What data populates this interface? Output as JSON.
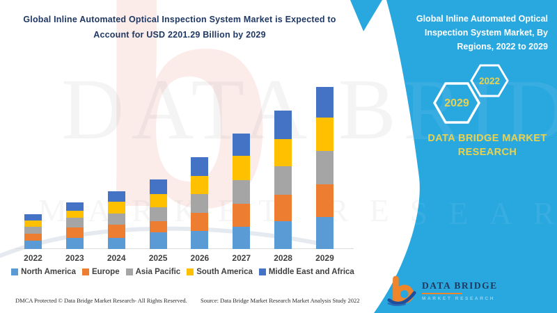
{
  "left": {
    "title_lines": [
      "Global Inline Automated Optical Inspection System Market is Expected to",
      "Account for USD 2201.29 Billion by 2029"
    ],
    "title_color": "#1f3864"
  },
  "right_panel": {
    "bg_color": "#29a7df",
    "title_lines": [
      "Global Inline Automated Optical",
      "Inspection System Market, By",
      "Regions, 2022 to 2029"
    ],
    "hexagons": [
      {
        "year": "2029"
      },
      {
        "year": "2022"
      }
    ],
    "brand_text_lines": [
      "DATA BRIDGE MARKET",
      "RESEARCH"
    ],
    "accent_text_color": "#ebd24d"
  },
  "chart_data": {
    "type": "bar",
    "stacked": true,
    "unit": "USD Billion",
    "categories": [
      "2022",
      "2023",
      "2024",
      "2025",
      "2026",
      "2027",
      "2028",
      "2029"
    ],
    "series": [
      {
        "name": "North America",
        "color": "#5b9bd5",
        "values": [
          113,
          156,
          156,
          231,
          246,
          307,
          383,
          435
        ]
      },
      {
        "name": "Europe",
        "color": "#ed7d31",
        "values": [
          99,
          142,
          180,
          151,
          250,
          312,
          354,
          449
        ]
      },
      {
        "name": "Asia Pacific",
        "color": "#a5a5a5",
        "values": [
          94,
          132,
          151,
          184,
          250,
          317,
          387,
          453
        ]
      },
      {
        "name": "South America",
        "color": "#ffc000",
        "values": [
          80,
          94,
          156,
          184,
          250,
          335,
          373,
          449
        ]
      },
      {
        "name": "Middle East and Africa",
        "color": "#4472c4",
        "values": [
          85,
          109,
          142,
          194,
          250,
          298,
          383,
          416
        ]
      }
    ],
    "totals_estimated": [
      471,
      633,
      785,
      944,
      1246,
      1569,
      1880,
      2201.29
    ],
    "highlight_value": "USD 2201.29 Billion by 2029",
    "legend_position": "bottom",
    "grid": false
  },
  "watermarks": {
    "logo_letter": "b",
    "brand": "DATA BRIDGE",
    "sub": "MARKET RESEARCH"
  },
  "logo": {
    "name": "DATA BRIDGE",
    "sub": "MARKET RESEARCH"
  },
  "footer": {
    "left": "DMCA Protected © Data Bridge Market Research- All Rights Reserved.",
    "source": "Source: Data Bridge Market Research Market Analysis Study 2022"
  }
}
